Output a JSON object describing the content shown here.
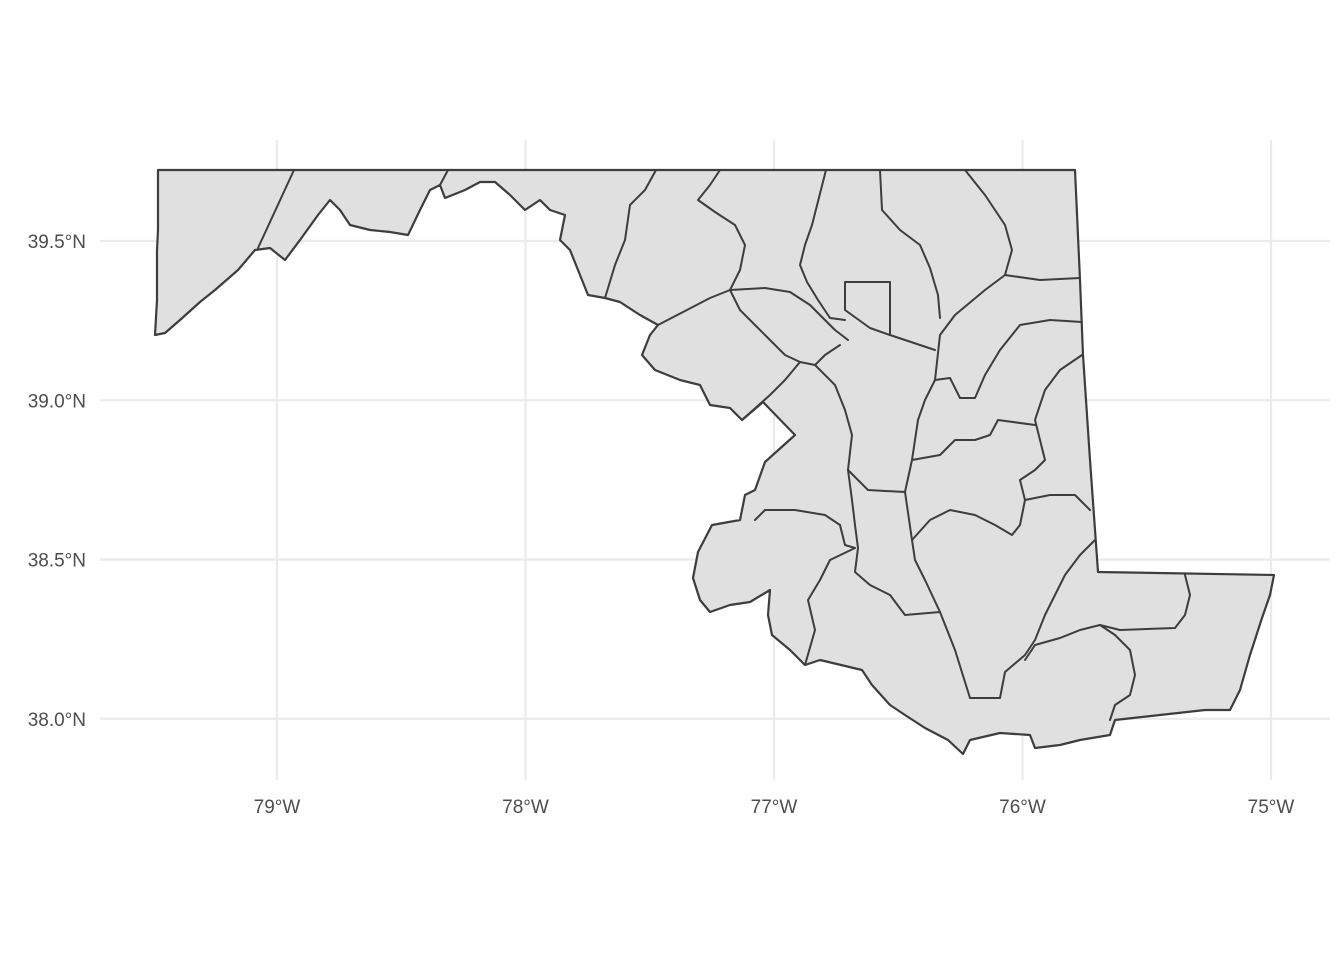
{
  "map": {
    "type": "choropleth-outline",
    "region": "Maryland counties",
    "fill_color": "#e0e0e0",
    "border_color": "#3d3d3d",
    "grid": true,
    "x_axis": {
      "range": [
        -79.6,
        -74.8
      ],
      "ticks": [
        {
          "value": -79,
          "label": "79°W"
        },
        {
          "value": -78,
          "label": "78°W"
        },
        {
          "value": -77,
          "label": "77°W"
        },
        {
          "value": -76,
          "label": "76°W"
        },
        {
          "value": -75,
          "label": "75°W"
        }
      ]
    },
    "y_axis": {
      "range": [
        37.8,
        39.8
      ],
      "ticks": [
        {
          "value": 39.5,
          "label": "39.5°N"
        },
        {
          "value": 39.0,
          "label": "39.0°N"
        },
        {
          "value": 38.5,
          "label": "38.5°N"
        },
        {
          "value": 38.0,
          "label": "38.0°N"
        }
      ]
    }
  }
}
